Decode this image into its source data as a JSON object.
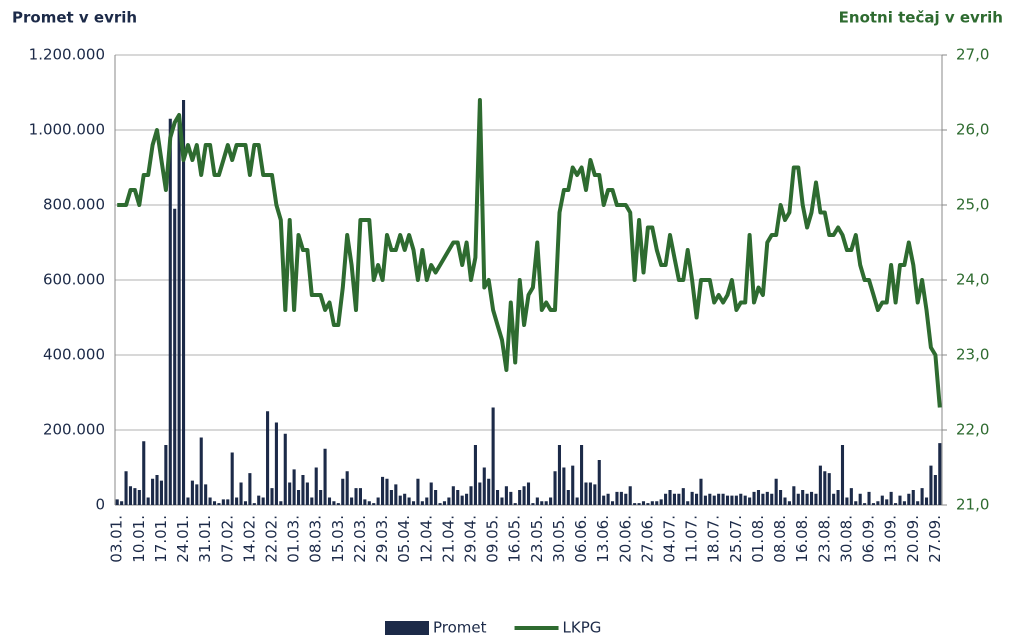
{
  "chart_data": {
    "type": "bar",
    "y_axis_label": "Promet v evrih",
    "y2_axis_label": "Enotni tečaj v evrih",
    "categories": [
      "03.01.",
      null,
      null,
      null,
      null,
      "10.01.",
      null,
      null,
      null,
      null,
      "17.01.",
      null,
      null,
      null,
      null,
      "24.01.",
      null,
      null,
      null,
      null,
      "31.01.",
      null,
      null,
      null,
      null,
      "07.02.",
      null,
      null,
      null,
      null,
      "14.02.",
      null,
      null,
      null,
      null,
      "22.02.",
      null,
      null,
      null,
      null,
      "01.03.",
      null,
      null,
      null,
      null,
      "08.03.",
      null,
      null,
      null,
      null,
      "15.03.",
      null,
      null,
      null,
      null,
      "22.03.",
      null,
      null,
      null,
      null,
      "29.03.",
      null,
      null,
      null,
      null,
      "05.04.",
      null,
      null,
      null,
      null,
      "12.04.",
      null,
      null,
      null,
      null,
      "21.04.",
      null,
      null,
      null,
      null,
      "29.04.",
      null,
      null,
      null,
      null,
      "09.05.",
      null,
      null,
      null,
      null,
      "16.05.",
      null,
      null,
      null,
      null,
      "23.05.",
      null,
      null,
      null,
      null,
      "30.05.",
      null,
      null,
      null,
      null,
      "06.06.",
      null,
      null,
      null,
      null,
      "13.06.",
      null,
      null,
      null,
      null,
      "20.06.",
      null,
      null,
      null,
      null,
      "27.06.",
      null,
      null,
      null,
      null,
      "04.07.",
      null,
      null,
      null,
      null,
      "11.07.",
      null,
      null,
      null,
      null,
      "18.07.",
      null,
      null,
      null,
      null,
      "25.07.",
      null,
      null,
      null,
      null,
      "01.08.",
      null,
      null,
      null,
      null,
      "08.08.",
      null,
      null,
      null,
      null,
      "16.08.",
      null,
      null,
      null,
      null,
      "23.08.",
      null,
      null,
      null,
      null,
      "30.08.",
      null,
      null,
      null,
      null,
      "06.09.",
      null,
      null,
      null,
      null,
      "13.09.",
      null,
      null,
      null,
      null,
      "20.09.",
      null,
      null,
      null,
      null,
      "27.09.",
      null
    ],
    "series": [
      {
        "name": "Promet",
        "type": "bar",
        "color": "#1c2a48",
        "values": [
          15000,
          10000,
          90000,
          50000,
          45000,
          40000,
          170000,
          20000,
          70000,
          80000,
          65000,
          160000,
          1030000,
          790000,
          1030000,
          1080000,
          20000,
          65000,
          55000,
          180000,
          55000,
          20000,
          10000,
          5000,
          15000,
          15000,
          140000,
          20000,
          60000,
          10000,
          85000,
          5000,
          25000,
          20000,
          250000,
          45000,
          220000,
          10000,
          190000,
          60000,
          95000,
          40000,
          80000,
          60000,
          20000,
          100000,
          40000,
          150000,
          20000,
          10000,
          5000,
          70000,
          90000,
          20000,
          45000,
          45000,
          15000,
          10000,
          5000,
          20000,
          75000,
          70000,
          40000,
          55000,
          25000,
          30000,
          20000,
          10000,
          70000,
          10000,
          20000,
          60000,
          40000,
          5000,
          10000,
          20000,
          50000,
          40000,
          25000,
          30000,
          50000,
          160000,
          60000,
          100000,
          70000,
          260000,
          40000,
          20000,
          50000,
          35000,
          5000,
          40000,
          50000,
          60000,
          5000,
          20000,
          10000,
          10000,
          20000,
          90000,
          160000,
          100000,
          40000,
          105000,
          20000,
          160000,
          60000,
          60000,
          55000,
          120000,
          25000,
          30000,
          10000,
          35000,
          35000,
          30000,
          50000,
          5000,
          5000,
          10000,
          5000,
          10000,
          10000,
          15000,
          30000,
          40000,
          30000,
          30000,
          45000,
          10000,
          35000,
          30000,
          70000,
          25000,
          30000,
          25000,
          30000,
          30000,
          25000,
          25000,
          25000,
          30000,
          25000,
          20000,
          35000,
          40000,
          30000,
          35000,
          30000,
          70000,
          40000,
          20000,
          10000,
          50000,
          30000,
          40000,
          30000,
          35000,
          30000,
          105000,
          90000,
          85000,
          30000,
          40000,
          160000,
          20000,
          45000,
          10000,
          30000,
          5000,
          35000,
          5000,
          10000,
          25000,
          15000,
          35000,
          5000,
          25000,
          10000,
          30000,
          40000,
          10000,
          45000,
          20000,
          105000,
          80000,
          165000
        ]
      },
      {
        "name": "LKPG",
        "type": "line",
        "axis": "y2",
        "color": "#2e6b30",
        "values": [
          25.0,
          25.0,
          25.0,
          25.2,
          25.2,
          25.0,
          25.4,
          25.4,
          25.8,
          26.0,
          25.6,
          25.2,
          25.9,
          26.1,
          26.2,
          25.6,
          25.8,
          25.6,
          25.8,
          25.4,
          25.8,
          25.8,
          25.4,
          25.4,
          25.6,
          25.8,
          25.6,
          25.8,
          25.8,
          25.8,
          25.4,
          25.8,
          25.8,
          25.4,
          25.4,
          25.4,
          25.0,
          24.8,
          23.6,
          24.8,
          23.6,
          24.6,
          24.4,
          24.4,
          23.8,
          23.8,
          23.8,
          23.6,
          23.7,
          23.4,
          23.4,
          23.9,
          24.6,
          24.2,
          23.6,
          24.8,
          24.8,
          24.8,
          24.0,
          24.2,
          24.0,
          24.6,
          24.4,
          24.4,
          24.6,
          24.4,
          24.6,
          24.4,
          24.0,
          24.4,
          24.0,
          24.2,
          24.1,
          24.2,
          24.3,
          24.4,
          24.5,
          24.5,
          24.2,
          24.5,
          24.0,
          24.3,
          26.4,
          23.9,
          24.0,
          23.6,
          23.4,
          23.2,
          22.8,
          23.7,
          22.9,
          24.0,
          23.4,
          23.8,
          23.9,
          24.5,
          23.6,
          23.7,
          23.6,
          23.6,
          24.9,
          25.2,
          25.2,
          25.5,
          25.4,
          25.5,
          25.2,
          25.6,
          25.4,
          25.4,
          25.0,
          25.2,
          25.2,
          25.0,
          25.0,
          25.0,
          24.9,
          24.0,
          24.8,
          24.1,
          24.7,
          24.7,
          24.4,
          24.2,
          24.2,
          24.6,
          24.3,
          24.0,
          24.0,
          24.4,
          24.0,
          23.5,
          24.0,
          24.0,
          24.0,
          23.7,
          23.8,
          23.7,
          23.8,
          24.0,
          23.6,
          23.7,
          23.7,
          24.6,
          23.7,
          23.9,
          23.8,
          24.5,
          24.6,
          24.6,
          25.0,
          24.8,
          24.9,
          25.5,
          25.5,
          25.0,
          24.7,
          24.9,
          25.3,
          24.9,
          24.9,
          24.6,
          24.6,
          24.7,
          24.6,
          24.4,
          24.4,
          24.6,
          24.2,
          24.0,
          24.0,
          23.8,
          23.6,
          23.7,
          23.7,
          24.2,
          23.7,
          24.2,
          24.2,
          24.5,
          24.2,
          23.7,
          24.0,
          23.6,
          23.1,
          23.0,
          22.3
        ]
      }
    ],
    "ylim": [
      0,
      1200000
    ],
    "yticks": [
      0,
      {
        "value": 200000,
        "label": "200.000"
      },
      {
        "value": 400000,
        "label": "400.000"
      },
      {
        "value": 600000,
        "label": "600.000"
      },
      {
        "value": 800000,
        "label": "800.000"
      },
      {
        "value": 1000000,
        "label": "1.000.000"
      },
      {
        "value": 1200000,
        "label": "1.200.000"
      }
    ],
    "y2lim": [
      21,
      27
    ],
    "y2ticks": [
      {
        "value": 21,
        "label": "21,0"
      },
      {
        "value": 22,
        "label": "22,0"
      },
      {
        "value": 23,
        "label": "23,0"
      },
      {
        "value": 24,
        "label": "24,0"
      },
      {
        "value": 25,
        "label": "25,0"
      },
      {
        "value": 26,
        "label": "26,0"
      },
      {
        "value": 27,
        "label": "27,0"
      }
    ],
    "grid": true,
    "legend": "bottom"
  }
}
